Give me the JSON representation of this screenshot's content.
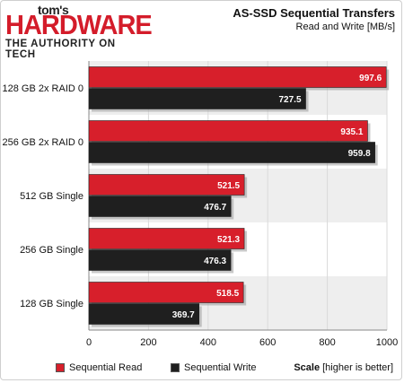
{
  "header": {
    "logo_toms": "tom's",
    "logo_hardware": "HARDWARE",
    "logo_tagline": "THE AUTHORITY ON TECH",
    "title": "AS-SSD Sequential Transfers",
    "subtitle": "Read and Write [MB/s]"
  },
  "legend": {
    "scale_bold": "Scale",
    "scale_note": "[higher is better]"
  },
  "colors": {
    "read": "#d71f2b",
    "write": "#1f1f1f",
    "grid": "#d9d9d9",
    "group_bg": "#eeeeee"
  },
  "chart_data": {
    "type": "bar",
    "orientation": "horizontal",
    "title": "AS-SSD Sequential Transfers",
    "subtitle": "Read and Write [MB/s]",
    "categories": [
      "128 GB 2x RAID 0",
      "256 GB 2x RAID 0",
      "512 GB Single",
      "256 GB Single",
      "128 GB Single"
    ],
    "series": [
      {
        "name": "Sequential Read",
        "values": [
          997.6,
          935.1,
          521.5,
          521.3,
          518.5
        ],
        "labels": [
          "997.6",
          "935.1",
          "521.5",
          "521.3",
          "518.5"
        ]
      },
      {
        "name": "Sequential Write",
        "values": [
          727.5,
          959.8,
          476.7,
          476.3,
          369.7
        ],
        "labels": [
          "727.5",
          "959.8",
          "476.7",
          "476.3",
          "369.7"
        ]
      }
    ],
    "xlim": [
      0,
      1000
    ],
    "xticks": [
      "0",
      "200",
      "400",
      "600",
      "800",
      "1000"
    ],
    "grid": true,
    "legend_position": "bottom"
  }
}
